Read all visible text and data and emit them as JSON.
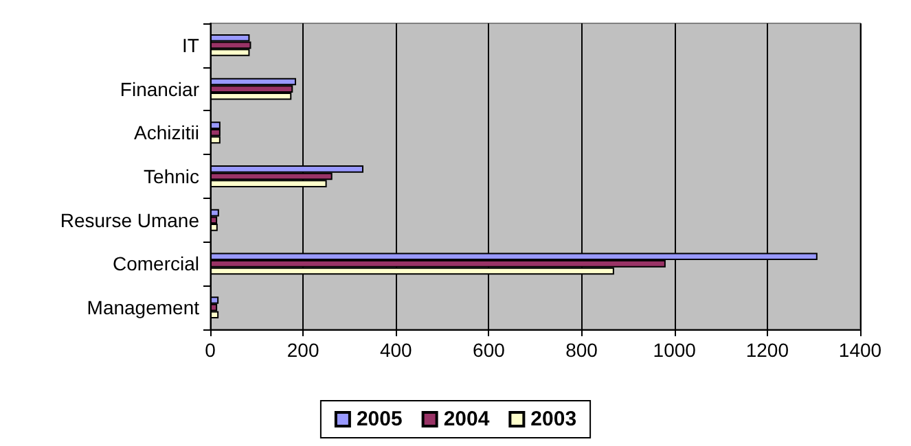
{
  "chart_data": {
    "type": "bar",
    "orientation": "horizontal",
    "categories": [
      "IT",
      "Financiar",
      "Achizitii",
      "Tehnic",
      "Resurse Umane",
      "Comercial",
      "Management"
    ],
    "series": [
      {
        "name": "2005",
        "color": "#9999ff",
        "values": [
          85,
          185,
          22,
          330,
          19,
          1308,
          18
        ]
      },
      {
        "name": "2004",
        "color": "#993366",
        "values": [
          88,
          178,
          22,
          263,
          15,
          981,
          15
        ]
      },
      {
        "name": "2003",
        "color": "#ffffcc",
        "values": [
          85,
          175,
          22,
          251,
          16,
          870,
          18
        ]
      }
    ],
    "xlim": [
      0,
      1400
    ],
    "xticks": [
      0,
      200,
      400,
      600,
      800,
      1000,
      1200,
      1400
    ],
    "grid": "x",
    "legend": "bottom"
  }
}
